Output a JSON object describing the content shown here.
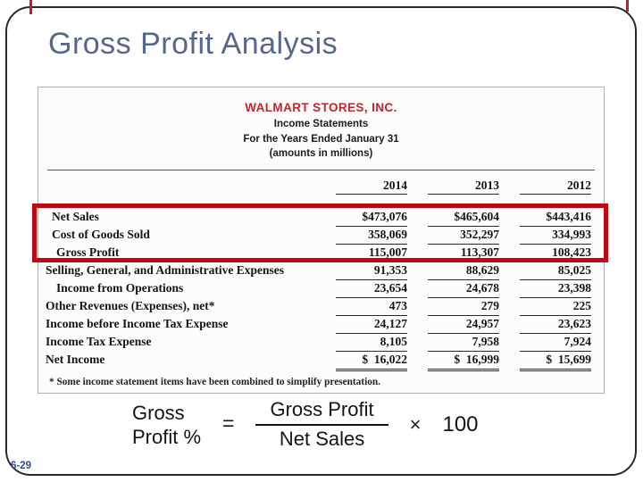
{
  "slide": {
    "title": "Gross Profit Analysis",
    "page_number": "6-29"
  },
  "statement": {
    "company": "WALMART STORES, INC.",
    "subtitle1": "Income Statements",
    "subtitle2": "For the Years Ended January 31",
    "subtitle3": "(amounts in millions)",
    "years": [
      "2014",
      "2013",
      "2012"
    ],
    "rows": [
      {
        "label": "Net Sales",
        "values": [
          "$473,076",
          "$465,604",
          "$443,416"
        ],
        "underline": "single",
        "indent": 1,
        "highlighted": true
      },
      {
        "label": "Cost of Goods Sold",
        "values": [
          "358,069",
          "352,297",
          "334,993"
        ],
        "underline": "single",
        "indent": 1,
        "highlighted": true
      },
      {
        "label": "Gross Profit",
        "values": [
          "115,007",
          "113,307",
          "108,423"
        ],
        "underline": "single",
        "indent": 2,
        "highlighted": true
      },
      {
        "label": "Selling, General, and Administrative Expenses",
        "values": [
          "91,353",
          "88,629",
          "85,025"
        ],
        "underline": "single",
        "indent": 0,
        "highlighted": false
      },
      {
        "label": "Income from Operations",
        "values": [
          "23,654",
          "24,678",
          "23,398"
        ],
        "underline": "single",
        "indent": 2,
        "highlighted": false
      },
      {
        "label": "Other Revenues (Expenses), net*",
        "values": [
          "473",
          "279",
          "225"
        ],
        "underline": "single",
        "indent": 0,
        "highlighted": false
      },
      {
        "label": "Income before Income Tax Expense",
        "values": [
          "24,127",
          "24,957",
          "23,623"
        ],
        "underline": "single",
        "indent": 0,
        "highlighted": false
      },
      {
        "label": "Income Tax Expense",
        "values": [
          "8,105",
          "7,958",
          "7,924"
        ],
        "underline": "single",
        "indent": 0,
        "highlighted": false
      },
      {
        "label": "Net Income",
        "values": [
          "$  16,022",
          "$  16,999",
          "$  15,699"
        ],
        "underline": "double",
        "indent": 0,
        "highlighted": false
      }
    ],
    "footnote": "* Some income statement items have been combined to simplify presentation."
  },
  "formula": {
    "lhs_line1": "Gross",
    "lhs_line2": "Profit %",
    "equals": "=",
    "numerator": "Gross Profit",
    "denominator": "Net Sales",
    "multiply": "×",
    "constant": "100"
  },
  "colors": {
    "title": "#55678c",
    "walmart_red": "#c0272d",
    "highlight_box": "#bf0811",
    "page_number": "#2d4e8e"
  }
}
